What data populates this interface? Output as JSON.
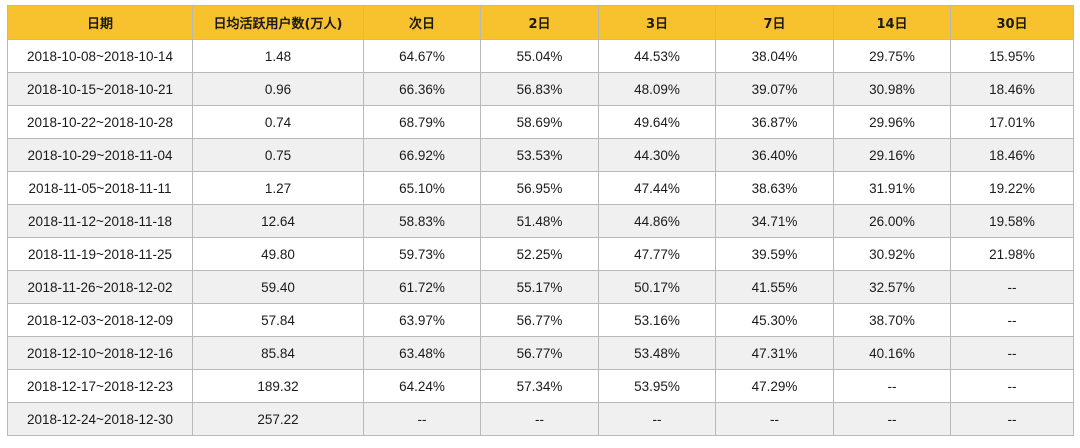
{
  "table": {
    "headers": [
      "日期",
      "日均活跃用户数(万人)",
      "次日",
      "2日",
      "3日",
      "7日",
      "14日",
      "30日"
    ],
    "rows": [
      [
        "2018-10-08~2018-10-14",
        "1.48",
        "64.67%",
        "55.04%",
        "44.53%",
        "38.04%",
        "29.75%",
        "15.95%"
      ],
      [
        "2018-10-15~2018-10-21",
        "0.96",
        "66.36%",
        "56.83%",
        "48.09%",
        "39.07%",
        "30.98%",
        "18.46%"
      ],
      [
        "2018-10-22~2018-10-28",
        "0.74",
        "68.79%",
        "58.69%",
        "49.64%",
        "36.87%",
        "29.96%",
        "17.01%"
      ],
      [
        "2018-10-29~2018-11-04",
        "0.75",
        "66.92%",
        "53.53%",
        "44.30%",
        "36.40%",
        "29.16%",
        "18.46%"
      ],
      [
        "2018-11-05~2018-11-11",
        "1.27",
        "65.10%",
        "56.95%",
        "47.44%",
        "38.63%",
        "31.91%",
        "19.22%"
      ],
      [
        "2018-11-12~2018-11-18",
        "12.64",
        "58.83%",
        "51.48%",
        "44.86%",
        "34.71%",
        "26.00%",
        "19.58%"
      ],
      [
        "2018-11-19~2018-11-25",
        "49.80",
        "59.73%",
        "52.25%",
        "47.77%",
        "39.59%",
        "30.92%",
        "21.98%"
      ],
      [
        "2018-11-26~2018-12-02",
        "59.40",
        "61.72%",
        "55.17%",
        "50.17%",
        "41.55%",
        "32.57%",
        "--"
      ],
      [
        "2018-12-03~2018-12-09",
        "57.84",
        "63.97%",
        "56.77%",
        "53.16%",
        "45.30%",
        "38.70%",
        "--"
      ],
      [
        "2018-12-10~2018-12-16",
        "85.84",
        "63.48%",
        "56.77%",
        "53.48%",
        "47.31%",
        "40.16%",
        "--"
      ],
      [
        "2018-12-17~2018-12-23",
        "189.32",
        "64.24%",
        "57.34%",
        "53.95%",
        "47.29%",
        "--",
        "--"
      ],
      [
        "2018-12-24~2018-12-30",
        "257.22",
        "--",
        "--",
        "--",
        "--",
        "--",
        "--"
      ]
    ]
  },
  "colors": {
    "header_bg": "#f7c22e",
    "alt_row_bg": "#f0f0f0",
    "border": "#b9b9b9"
  }
}
